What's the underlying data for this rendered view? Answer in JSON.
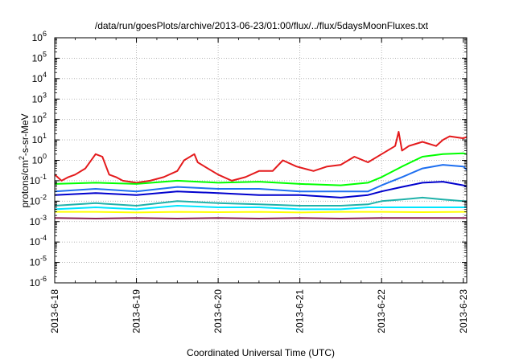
{
  "chart_data": {
    "type": "line",
    "title": "/data/run/goesPlots/archive/2013-06-23/01:00/flux/../flux/5daysMoonFluxes.txt",
    "xlabel": "Coordinated Universal Time (UTC)",
    "ylabel": "protons/cm²-s-sr-MeV",
    "ylabel_parts": {
      "pre": "protons/cm",
      "sup": "2",
      "post": "-s-sr-MeV"
    },
    "y_scale": "log",
    "ylim": [
      1e-06,
      1000000.0
    ],
    "y_ticks": [
      {
        "base": "10",
        "exp": "6"
      },
      {
        "base": "10",
        "exp": "5"
      },
      {
        "base": "10",
        "exp": "4"
      },
      {
        "base": "10",
        "exp": "3"
      },
      {
        "base": "10",
        "exp": "2"
      },
      {
        "base": "10",
        "exp": "1"
      },
      {
        "base": "10",
        "exp": "0"
      },
      {
        "base": "10",
        "exp": "-1"
      },
      {
        "base": "10",
        "exp": "-2"
      },
      {
        "base": "10",
        "exp": "-3"
      },
      {
        "base": "10",
        "exp": "-4"
      },
      {
        "base": "10",
        "exp": "-5"
      },
      {
        "base": "10",
        "exp": "-6"
      }
    ],
    "x_ticks": [
      "2013-6-18",
      "2013-6-19",
      "2013-6-20",
      "2013-6-21",
      "2013-6-22",
      "2013-6-23"
    ],
    "xlim": [
      "2013-06-18 00:00",
      "2013-06-23 01:00"
    ],
    "grid": true,
    "legend": "none",
    "series": [
      {
        "color": "#e41a1c",
        "x": [
          "2013-06-18 00:00",
          "2013-06-18 02:00",
          "2013-06-18 04:00",
          "2013-06-18 06:00",
          "2013-06-18 09:00",
          "2013-06-18 12:00",
          "2013-06-18 14:00",
          "2013-06-18 16:00",
          "2013-06-18 18:00",
          "2013-06-18 20:00",
          "2013-06-19 00:00",
          "2013-06-19 04:00",
          "2013-06-19 08:00",
          "2013-06-19 12:00",
          "2013-06-19 14:00",
          "2013-06-19 17:00",
          "2013-06-19 18:00",
          "2013-06-19 20:00",
          "2013-06-20 00:00",
          "2013-06-20 04:00",
          "2013-06-20 08:00",
          "2013-06-20 12:00",
          "2013-06-20 16:00",
          "2013-06-20 19:00",
          "2013-06-20 23:00",
          "2013-06-21 04:00",
          "2013-06-21 08:00",
          "2013-06-21 12:00",
          "2013-06-21 16:00",
          "2013-06-21 20:00",
          "2013-06-22 00:00",
          "2013-06-22 04:00",
          "2013-06-22 05:00",
          "2013-06-22 06:00",
          "2013-06-22 08:00",
          "2013-06-22 12:00",
          "2013-06-22 16:00",
          "2013-06-22 18:00",
          "2013-06-22 20:00",
          "2013-06-23 00:00",
          "2013-06-23 01:00"
        ],
        "y": [
          0.2,
          0.1,
          0.15,
          0.2,
          0.4,
          2,
          1.5,
          0.2,
          0.15,
          0.1,
          0.08,
          0.1,
          0.15,
          0.3,
          1,
          2,
          0.8,
          0.5,
          0.2,
          0.1,
          0.15,
          0.3,
          0.3,
          1,
          0.5,
          0.3,
          0.5,
          0.6,
          1.5,
          0.8,
          2,
          5,
          25,
          3,
          5,
          8,
          5,
          10,
          15,
          12,
          14
        ]
      },
      {
        "color": "#00ff00",
        "x": [
          "2013-06-18 00:00",
          "2013-06-18 12:00",
          "2013-06-19 00:00",
          "2013-06-19 12:00",
          "2013-06-20 00:00",
          "2013-06-20 12:00",
          "2013-06-21 00:00",
          "2013-06-21 12:00",
          "2013-06-21 20:00",
          "2013-06-22 00:00",
          "2013-06-22 06:00",
          "2013-06-22 12:00",
          "2013-06-22 18:00",
          "2013-06-23 00:00",
          "2013-06-23 01:00"
        ],
        "y": [
          0.07,
          0.08,
          0.07,
          0.1,
          0.08,
          0.09,
          0.07,
          0.06,
          0.08,
          0.15,
          0.5,
          1.5,
          2,
          2.2,
          2
        ]
      },
      {
        "color": "#1e6ff0",
        "x": [
          "2013-06-18 00:00",
          "2013-06-18 12:00",
          "2013-06-19 00:00",
          "2013-06-19 12:00",
          "2013-06-20 00:00",
          "2013-06-20 12:00",
          "2013-06-21 00:00",
          "2013-06-21 12:00",
          "2013-06-21 20:00",
          "2013-06-22 00:00",
          "2013-06-22 06:00",
          "2013-06-22 12:00",
          "2013-06-22 18:00",
          "2013-06-23 00:00",
          "2013-06-23 01:00"
        ],
        "y": [
          0.03,
          0.04,
          0.03,
          0.05,
          0.04,
          0.04,
          0.03,
          0.03,
          0.03,
          0.06,
          0.15,
          0.4,
          0.6,
          0.5,
          0.35
        ]
      },
      {
        "color": "#0000cd",
        "x": [
          "2013-06-18 00:00",
          "2013-06-18 12:00",
          "2013-06-19 00:00",
          "2013-06-19 12:00",
          "2013-06-20 00:00",
          "2013-06-20 12:00",
          "2013-06-21 00:00",
          "2013-06-21 12:00",
          "2013-06-21 20:00",
          "2013-06-22 00:00",
          "2013-06-22 06:00",
          "2013-06-22 12:00",
          "2013-06-22 18:00",
          "2013-06-23 00:00",
          "2013-06-23 01:00"
        ],
        "y": [
          0.02,
          0.025,
          0.02,
          0.03,
          0.025,
          0.02,
          0.02,
          0.015,
          0.02,
          0.03,
          0.05,
          0.08,
          0.09,
          0.06,
          0.05
        ]
      },
      {
        "color": "#20b2aa",
        "x": [
          "2013-06-18 00:00",
          "2013-06-18 12:00",
          "2013-06-19 00:00",
          "2013-06-19 12:00",
          "2013-06-20 00:00",
          "2013-06-20 12:00",
          "2013-06-21 00:00",
          "2013-06-21 12:00",
          "2013-06-21 20:00",
          "2013-06-22 00:00",
          "2013-06-22 06:00",
          "2013-06-22 12:00",
          "2013-06-22 18:00",
          "2013-06-23 00:00",
          "2013-06-23 01:00"
        ],
        "y": [
          0.006,
          0.008,
          0.006,
          0.01,
          0.008,
          0.007,
          0.006,
          0.006,
          0.007,
          0.01,
          0.012,
          0.015,
          0.012,
          0.01,
          0.01
        ]
      },
      {
        "color": "#00e5ff",
        "x": [
          "2013-06-18 00:00",
          "2013-06-18 12:00",
          "2013-06-19 00:00",
          "2013-06-19 12:00",
          "2013-06-20 00:00",
          "2013-06-20 12:00",
          "2013-06-21 00:00",
          "2013-06-21 12:00",
          "2013-06-21 20:00",
          "2013-06-22 00:00",
          "2013-06-22 12:00",
          "2013-06-23 00:00",
          "2013-06-23 01:00"
        ],
        "y": [
          0.004,
          0.005,
          0.004,
          0.006,
          0.005,
          0.005,
          0.004,
          0.004,
          0.005,
          0.005,
          0.005,
          0.005,
          0.005
        ]
      },
      {
        "color": "#ffff00",
        "x": [
          "2013-06-18 00:00",
          "2013-06-18 12:00",
          "2013-06-19 00:00",
          "2013-06-19 12:00",
          "2013-06-20 00:00",
          "2013-06-20 12:00",
          "2013-06-21 00:00",
          "2013-06-21 12:00",
          "2013-06-22 00:00",
          "2013-06-22 12:00",
          "2013-06-23 00:00",
          "2013-06-23 01:00"
        ],
        "y": [
          0.003,
          0.003,
          0.0028,
          0.003,
          0.0029,
          0.003,
          0.0028,
          0.003,
          0.003,
          0.0029,
          0.003,
          0.003
        ]
      },
      {
        "color": "#8b2252",
        "x": [
          "2013-06-18 00:00",
          "2013-06-18 12:00",
          "2013-06-19 00:00",
          "2013-06-19 12:00",
          "2013-06-20 00:00",
          "2013-06-20 12:00",
          "2013-06-21 00:00",
          "2013-06-21 12:00",
          "2013-06-22 00:00",
          "2013-06-22 12:00",
          "2013-06-23 00:00",
          "2013-06-23 01:00"
        ],
        "y": [
          0.0015,
          0.0014,
          0.0015,
          0.0014,
          0.0015,
          0.0014,
          0.0015,
          0.0014,
          0.0015,
          0.0015,
          0.0015,
          0.0015
        ]
      }
    ]
  }
}
